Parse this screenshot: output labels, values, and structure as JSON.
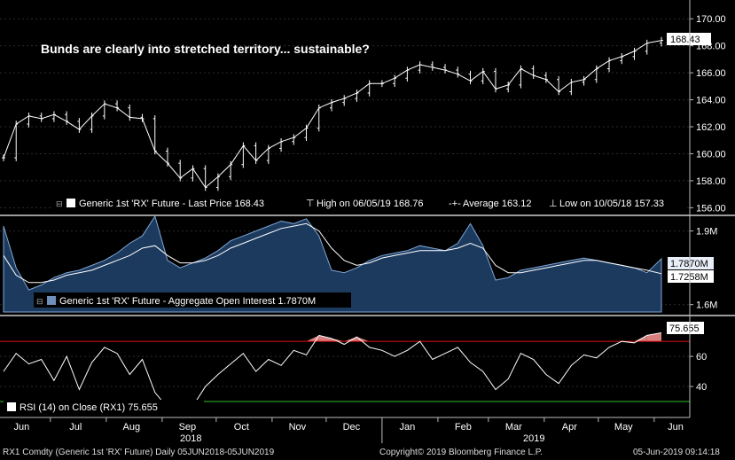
{
  "chart_data": [
    {
      "type": "line",
      "panel": "price",
      "title": "Bunds are clearly into stretched territory... sustainable?",
      "ylim": [
        155.5,
        171
      ],
      "yticks": [
        156,
        158,
        160,
        162,
        164,
        166,
        168,
        170
      ],
      "ytick_labels": [
        "156.00",
        "158.00",
        "160.00",
        "162.00",
        "164.00",
        "166.00",
        "168.00",
        "170.00"
      ],
      "current_value_label": "168.43",
      "legend": {
        "series_label": "Generic 1st 'RX' Future - Last Price 168.43",
        "high_label": "High on 06/05/19 168.76",
        "average_label": "Average 163.12",
        "low_label": "Low on 10/05/18 157.33"
      },
      "series": [
        {
          "name": "Generic 1st 'RX' Future - Last Price",
          "x": [
            "2018-06-05",
            "2018-06-12",
            "2018-06-19",
            "2018-06-26",
            "2018-07-03",
            "2018-07-10",
            "2018-07-17",
            "2018-07-24",
            "2018-07-31",
            "2018-08-07",
            "2018-08-14",
            "2018-08-21",
            "2018-08-28",
            "2018-09-04",
            "2018-09-11",
            "2018-09-18",
            "2018-09-25",
            "2018-10-02",
            "2018-10-09",
            "2018-10-16",
            "2018-10-23",
            "2018-10-30",
            "2018-11-06",
            "2018-11-13",
            "2018-11-20",
            "2018-11-27",
            "2018-12-04",
            "2018-12-11",
            "2018-12-18",
            "2018-12-25",
            "2019-01-01",
            "2019-01-08",
            "2019-01-15",
            "2019-01-22",
            "2019-01-29",
            "2019-02-05",
            "2019-02-12",
            "2019-02-19",
            "2019-02-26",
            "2019-03-05",
            "2019-03-12",
            "2019-03-19",
            "2019-03-26",
            "2019-04-02",
            "2019-04-09",
            "2019-04-16",
            "2019-04-23",
            "2019-04-30",
            "2019-05-07",
            "2019-05-14",
            "2019-05-21",
            "2019-05-28",
            "2019-06-05"
          ],
          "values": [
            159.7,
            162.2,
            162.8,
            162.6,
            162.9,
            162.4,
            161.8,
            162.8,
            163.7,
            163.4,
            162.7,
            162.6,
            160.2,
            159.3,
            158.2,
            158.9,
            157.5,
            158.3,
            159.2,
            160.6,
            159.5,
            160.4,
            160.9,
            161.2,
            161.9,
            163.4,
            163.8,
            164.1,
            164.5,
            165.2,
            165.2,
            165.6,
            166.2,
            166.6,
            166.4,
            166.2,
            165.9,
            165.4,
            166.1,
            164.8,
            165.1,
            166.3,
            165.8,
            165.5,
            164.6,
            165.3,
            165.5,
            166.3,
            166.9,
            167.2,
            167.6,
            168.2,
            168.4
          ]
        }
      ]
    },
    {
      "type": "area",
      "panel": "open_interest",
      "ylim": [
        1.57,
        1.96
      ],
      "yticks": [
        1.6,
        1.9
      ],
      "ytick_labels": [
        "1.6M",
        "1.9M"
      ],
      "value_labels": [
        "1.7870M",
        "1.7258M"
      ],
      "legend": {
        "series_label": "Generic 1st 'RX' Future - Aggregate Open Interest 1.7870M"
      },
      "series": [
        {
          "name": "Generic 1st 'RX' Future - Aggregate Open Interest",
          "x": [
            "2018-06-05",
            "2018-06-12",
            "2018-06-19",
            "2018-06-26",
            "2018-07-03",
            "2018-07-10",
            "2018-07-17",
            "2018-07-24",
            "2018-07-31",
            "2018-08-07",
            "2018-08-14",
            "2018-08-21",
            "2018-08-28",
            "2018-09-04",
            "2018-09-11",
            "2018-09-18",
            "2018-09-25",
            "2018-10-02",
            "2018-10-09",
            "2018-10-16",
            "2018-10-23",
            "2018-10-30",
            "2018-11-06",
            "2018-11-13",
            "2018-11-20",
            "2018-11-27",
            "2018-12-04",
            "2018-12-11",
            "2018-12-18",
            "2018-12-25",
            "2019-01-01",
            "2019-01-08",
            "2019-01-15",
            "2019-01-22",
            "2019-01-29",
            "2019-02-05",
            "2019-02-12",
            "2019-02-19",
            "2019-02-26",
            "2019-03-05",
            "2019-03-12",
            "2019-03-19",
            "2019-03-26",
            "2019-04-02",
            "2019-04-09",
            "2019-04-16",
            "2019-04-23",
            "2019-04-30",
            "2019-05-07",
            "2019-05-14",
            "2019-05-21",
            "2019-05-28",
            "2019-06-05"
          ],
          "values": [
            1.92,
            1.75,
            1.66,
            1.68,
            1.71,
            1.73,
            1.74,
            1.76,
            1.78,
            1.81,
            1.85,
            1.88,
            1.96,
            1.78,
            1.75,
            1.77,
            1.79,
            1.82,
            1.86,
            1.88,
            1.9,
            1.92,
            1.94,
            1.93,
            1.95,
            1.88,
            1.74,
            1.73,
            1.75,
            1.78,
            1.8,
            1.81,
            1.82,
            1.84,
            1.83,
            1.82,
            1.85,
            1.93,
            1.84,
            1.7,
            1.71,
            1.74,
            1.75,
            1.76,
            1.77,
            1.78,
            1.79,
            1.78,
            1.77,
            1.76,
            1.75,
            1.73,
            1.787
          ]
        },
        {
          "name": "Moving average",
          "values": [
            1.8,
            1.72,
            1.69,
            1.69,
            1.7,
            1.72,
            1.73,
            1.74,
            1.76,
            1.78,
            1.8,
            1.83,
            1.84,
            1.8,
            1.77,
            1.77,
            1.78,
            1.8,
            1.83,
            1.85,
            1.87,
            1.89,
            1.91,
            1.92,
            1.93,
            1.9,
            1.83,
            1.78,
            1.76,
            1.77,
            1.79,
            1.8,
            1.81,
            1.82,
            1.82,
            1.82,
            1.83,
            1.85,
            1.83,
            1.76,
            1.73,
            1.73,
            1.74,
            1.75,
            1.76,
            1.77,
            1.78,
            1.78,
            1.77,
            1.76,
            1.75,
            1.74,
            1.726
          ]
        }
      ]
    },
    {
      "type": "line",
      "panel": "rsi",
      "ylim": [
        20,
        86
      ],
      "yticks": [
        40,
        60
      ],
      "ytick_labels": [
        "40",
        "60"
      ],
      "overbought": 70,
      "oversold": 30,
      "current_value_label": "75.655",
      "legend": {
        "series_label": "RSI (14)  on Close (RX1) 75.655"
      },
      "series": [
        {
          "name": "RSI (14) on Close (RX1)",
          "x": [
            "2018-06-05",
            "2018-06-12",
            "2018-06-19",
            "2018-06-26",
            "2018-07-03",
            "2018-07-10",
            "2018-07-17",
            "2018-07-24",
            "2018-07-31",
            "2018-08-07",
            "2018-08-14",
            "2018-08-21",
            "2018-08-28",
            "2018-09-04",
            "2018-09-11",
            "2018-09-18",
            "2018-09-25",
            "2018-10-02",
            "2018-10-09",
            "2018-10-16",
            "2018-10-23",
            "2018-10-30",
            "2018-11-06",
            "2018-11-13",
            "2018-11-20",
            "2018-11-27",
            "2018-12-04",
            "2018-12-11",
            "2018-12-18",
            "2018-12-25",
            "2019-01-01",
            "2019-01-08",
            "2019-01-15",
            "2019-01-22",
            "2019-01-29",
            "2019-02-05",
            "2019-02-12",
            "2019-02-19",
            "2019-02-26",
            "2019-03-05",
            "2019-03-12",
            "2019-03-19",
            "2019-03-26",
            "2019-04-02",
            "2019-04-09",
            "2019-04-16",
            "2019-04-23",
            "2019-04-30",
            "2019-05-07",
            "2019-05-14",
            "2019-05-21",
            "2019-05-28",
            "2019-06-05"
          ],
          "values": [
            50,
            62,
            55,
            58,
            44,
            60,
            38,
            56,
            66,
            62,
            48,
            58,
            36,
            26,
            24,
            27,
            40,
            48,
            55,
            62,
            50,
            58,
            54,
            64,
            61,
            74,
            72,
            68,
            73,
            66,
            64,
            60,
            64,
            70,
            58,
            62,
            66,
            56,
            50,
            38,
            45,
            62,
            58,
            48,
            42,
            54,
            61,
            59,
            66,
            70,
            69,
            74,
            75.7
          ]
        }
      ]
    }
  ],
  "axis": {
    "months": [
      "Jun",
      "Jul",
      "Aug",
      "Sep",
      "Oct",
      "Nov",
      "Dec",
      "Jan",
      "Feb",
      "Mar",
      "Apr",
      "May",
      "Jun"
    ],
    "years": [
      "2018",
      "2019"
    ]
  },
  "footer": {
    "ticker": "RX1 Comdty (Generic 1st 'RX' Future)  Daily 05JUN2018-05JUN2019",
    "copyright": "Copyright© 2019 Bloomberg Finance L.P.",
    "timestamp": "05-Jun-2019 09:14:18"
  },
  "colors": {
    "background": "#000000",
    "price_line": "#ffffff",
    "oi_fill": "#1c3a5e",
    "oi_line": "#7fa6d6",
    "overbought_line": "#e01010",
    "oversold_line": "#30c030",
    "overbought_fill": "#d88080",
    "oversold_fill": "#4fa84f"
  }
}
